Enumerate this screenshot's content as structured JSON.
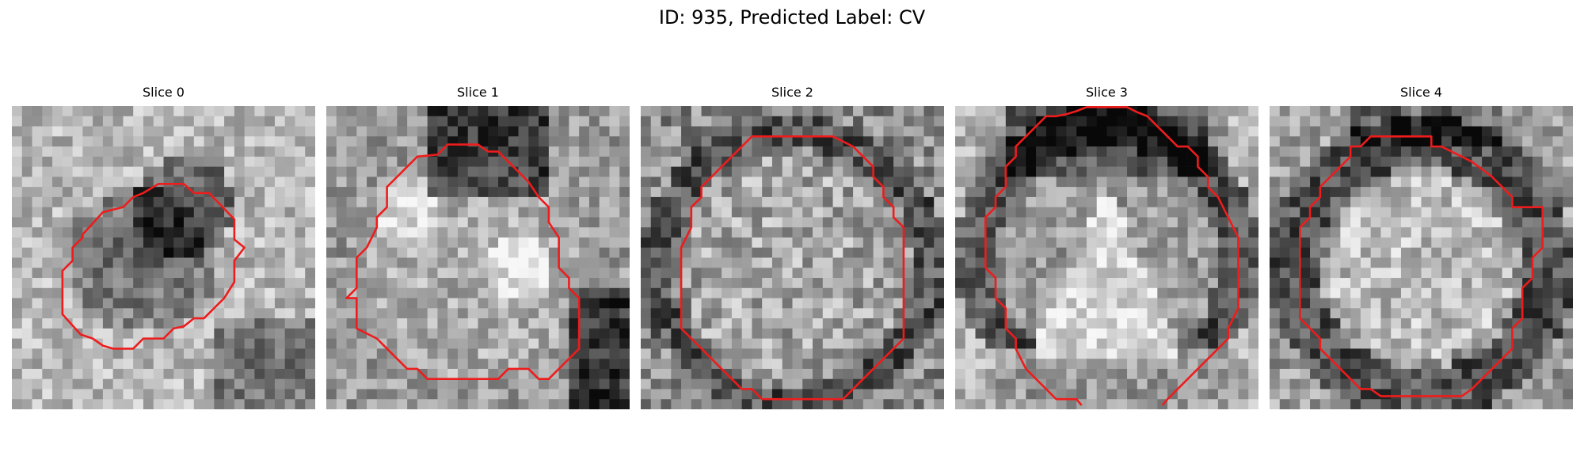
{
  "figure": {
    "title": "ID: 935, Predicted Label: CV"
  },
  "slices": [
    {
      "label": "Slice 0"
    },
    {
      "label": "Slice 1"
    },
    {
      "label": "Slice 2"
    },
    {
      "label": "Slice 3"
    },
    {
      "label": "Slice 4"
    }
  ],
  "colors": {
    "contour": "#ee1c1c",
    "background": "#ffffff"
  }
}
